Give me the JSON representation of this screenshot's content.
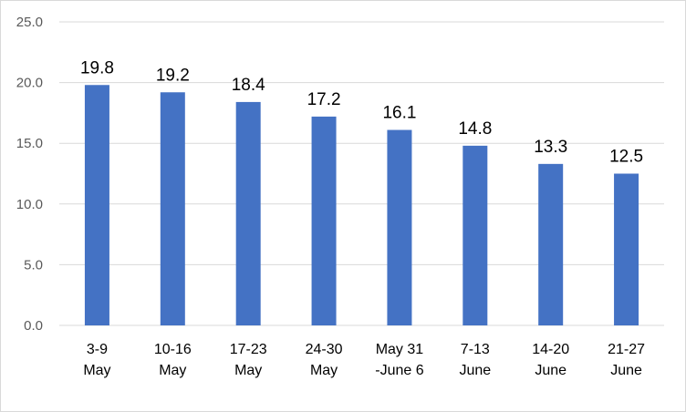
{
  "chart_data": {
    "type": "bar",
    "categories": [
      [
        "3-9",
        "May"
      ],
      [
        "10-16",
        "May"
      ],
      [
        "17-23",
        "May"
      ],
      [
        "24-30",
        "May"
      ],
      [
        "May 31",
        "-June 6"
      ],
      [
        "7-13",
        "June"
      ],
      [
        "14-20",
        "June"
      ],
      [
        "21-27",
        "June"
      ]
    ],
    "values": [
      19.8,
      19.2,
      18.4,
      17.2,
      16.1,
      14.8,
      13.3,
      12.5
    ],
    "value_labels": [
      "19.8",
      "19.2",
      "18.4",
      "17.2",
      "16.1",
      "14.8",
      "13.3",
      "12.5"
    ],
    "y_ticks": [
      "0.0",
      "5.0",
      "10.0",
      "15.0",
      "20.0",
      "25.0"
    ],
    "ylim": [
      0,
      25
    ],
    "grid": true,
    "bar_color": "#4472c4",
    "grid_color": "#d9d9d9",
    "title": "",
    "xlabel": "",
    "ylabel": ""
  }
}
